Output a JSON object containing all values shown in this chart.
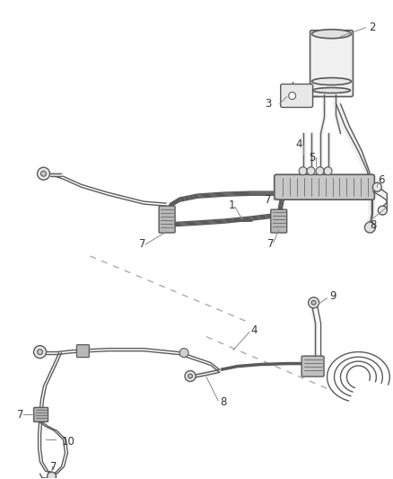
{
  "bg_color": "#ffffff",
  "lc": "#5a5a5a",
  "lc_light": "#888888",
  "dc": "#aaaaaa",
  "label_color": "#333333",
  "figsize": [
    4.38,
    5.33
  ],
  "dpi": 100,
  "lw": 1.0,
  "lw2": 1.4
}
